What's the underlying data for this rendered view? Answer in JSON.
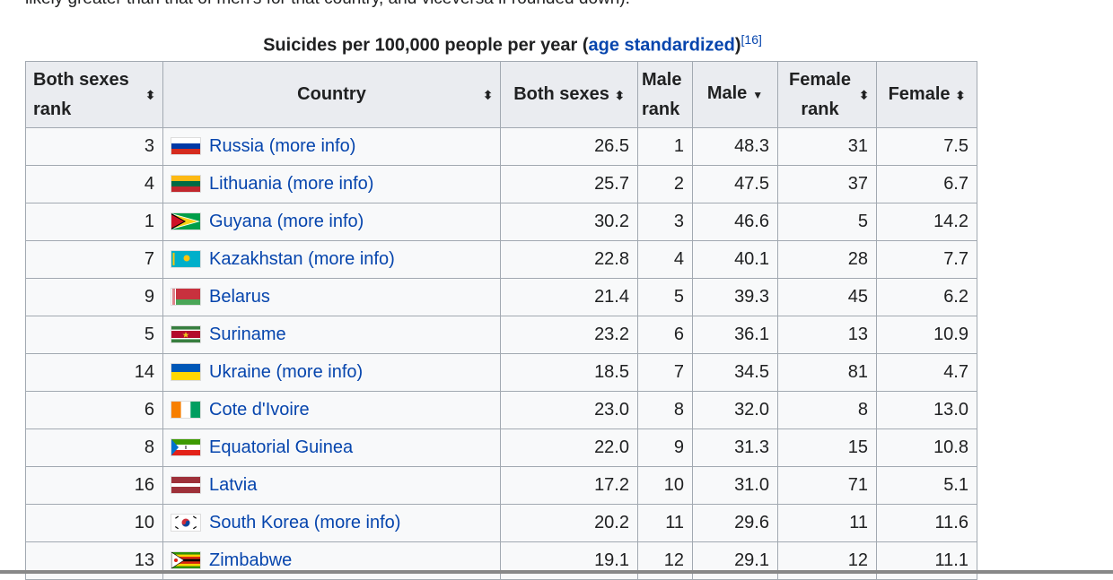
{
  "intro_text": "likely greater than that of men's for that country, and viceversa if rounded down).",
  "caption": {
    "prefix": "Suicides per 100,000 people per year (",
    "link": "age standardized",
    "suffix": ")",
    "ref": "[16]"
  },
  "columns": [
    {
      "label": "Both sexes rank",
      "sort": "⬍"
    },
    {
      "label": "Country",
      "sort": "⬍"
    },
    {
      "label": "Both sexes",
      "sort": "⬍"
    },
    {
      "label": "Male rank",
      "sort": "⬍"
    },
    {
      "label": "Male",
      "sort": "▼"
    },
    {
      "label": "Female rank",
      "sort": "⬍"
    },
    {
      "label": "Female",
      "sort": "⬍"
    }
  ],
  "rows": [
    {
      "both_rank": "3",
      "country": "Russia",
      "more": "(more info)",
      "flag": "russia",
      "both": "26.5",
      "male_rank": "1",
      "male": "48.3",
      "female_rank": "31",
      "female": "7.5"
    },
    {
      "both_rank": "4",
      "country": "Lithuania",
      "more": "(more info)",
      "flag": "lithuania",
      "both": "25.7",
      "male_rank": "2",
      "male": "47.5",
      "female_rank": "37",
      "female": "6.7"
    },
    {
      "both_rank": "1",
      "country": "Guyana",
      "more": "(more info)",
      "flag": "guyana",
      "both": "30.2",
      "male_rank": "3",
      "male": "46.6",
      "female_rank": "5",
      "female": "14.2"
    },
    {
      "both_rank": "7",
      "country": "Kazakhstan",
      "more": "(more info)",
      "flag": "kazakhstan",
      "both": "22.8",
      "male_rank": "4",
      "male": "40.1",
      "female_rank": "28",
      "female": "7.7"
    },
    {
      "both_rank": "9",
      "country": "Belarus",
      "more": "",
      "flag": "belarus",
      "both": "21.4",
      "male_rank": "5",
      "male": "39.3",
      "female_rank": "45",
      "female": "6.2"
    },
    {
      "both_rank": "5",
      "country": "Suriname",
      "more": "",
      "flag": "suriname",
      "both": "23.2",
      "male_rank": "6",
      "male": "36.1",
      "female_rank": "13",
      "female": "10.9"
    },
    {
      "both_rank": "14",
      "country": "Ukraine",
      "more": "(more info)",
      "flag": "ukraine",
      "both": "18.5",
      "male_rank": "7",
      "male": "34.5",
      "female_rank": "81",
      "female": "4.7"
    },
    {
      "both_rank": "6",
      "country": "Cote d'Ivoire",
      "more": "",
      "flag": "cotedivoire",
      "both": "23.0",
      "male_rank": "8",
      "male": "32.0",
      "female_rank": "8",
      "female": "13.0"
    },
    {
      "both_rank": "8",
      "country": "Equatorial Guinea",
      "more": "",
      "flag": "eqguinea",
      "both": "22.0",
      "male_rank": "9",
      "male": "31.3",
      "female_rank": "15",
      "female": "10.8"
    },
    {
      "both_rank": "16",
      "country": "Latvia",
      "more": "",
      "flag": "latvia",
      "both": "17.2",
      "male_rank": "10",
      "male": "31.0",
      "female_rank": "71",
      "female": "5.1"
    },
    {
      "both_rank": "10",
      "country": "South Korea",
      "more": "(more info)",
      "flag": "southkorea",
      "both": "20.2",
      "male_rank": "11",
      "male": "29.6",
      "female_rank": "11",
      "female": "11.6"
    },
    {
      "both_rank": "13",
      "country": "Zimbabwe",
      "more": "",
      "flag": "zimbabwe",
      "both": "19.1",
      "male_rank": "12",
      "male": "29.1",
      "female_rank": "12",
      "female": "11.1"
    }
  ]
}
